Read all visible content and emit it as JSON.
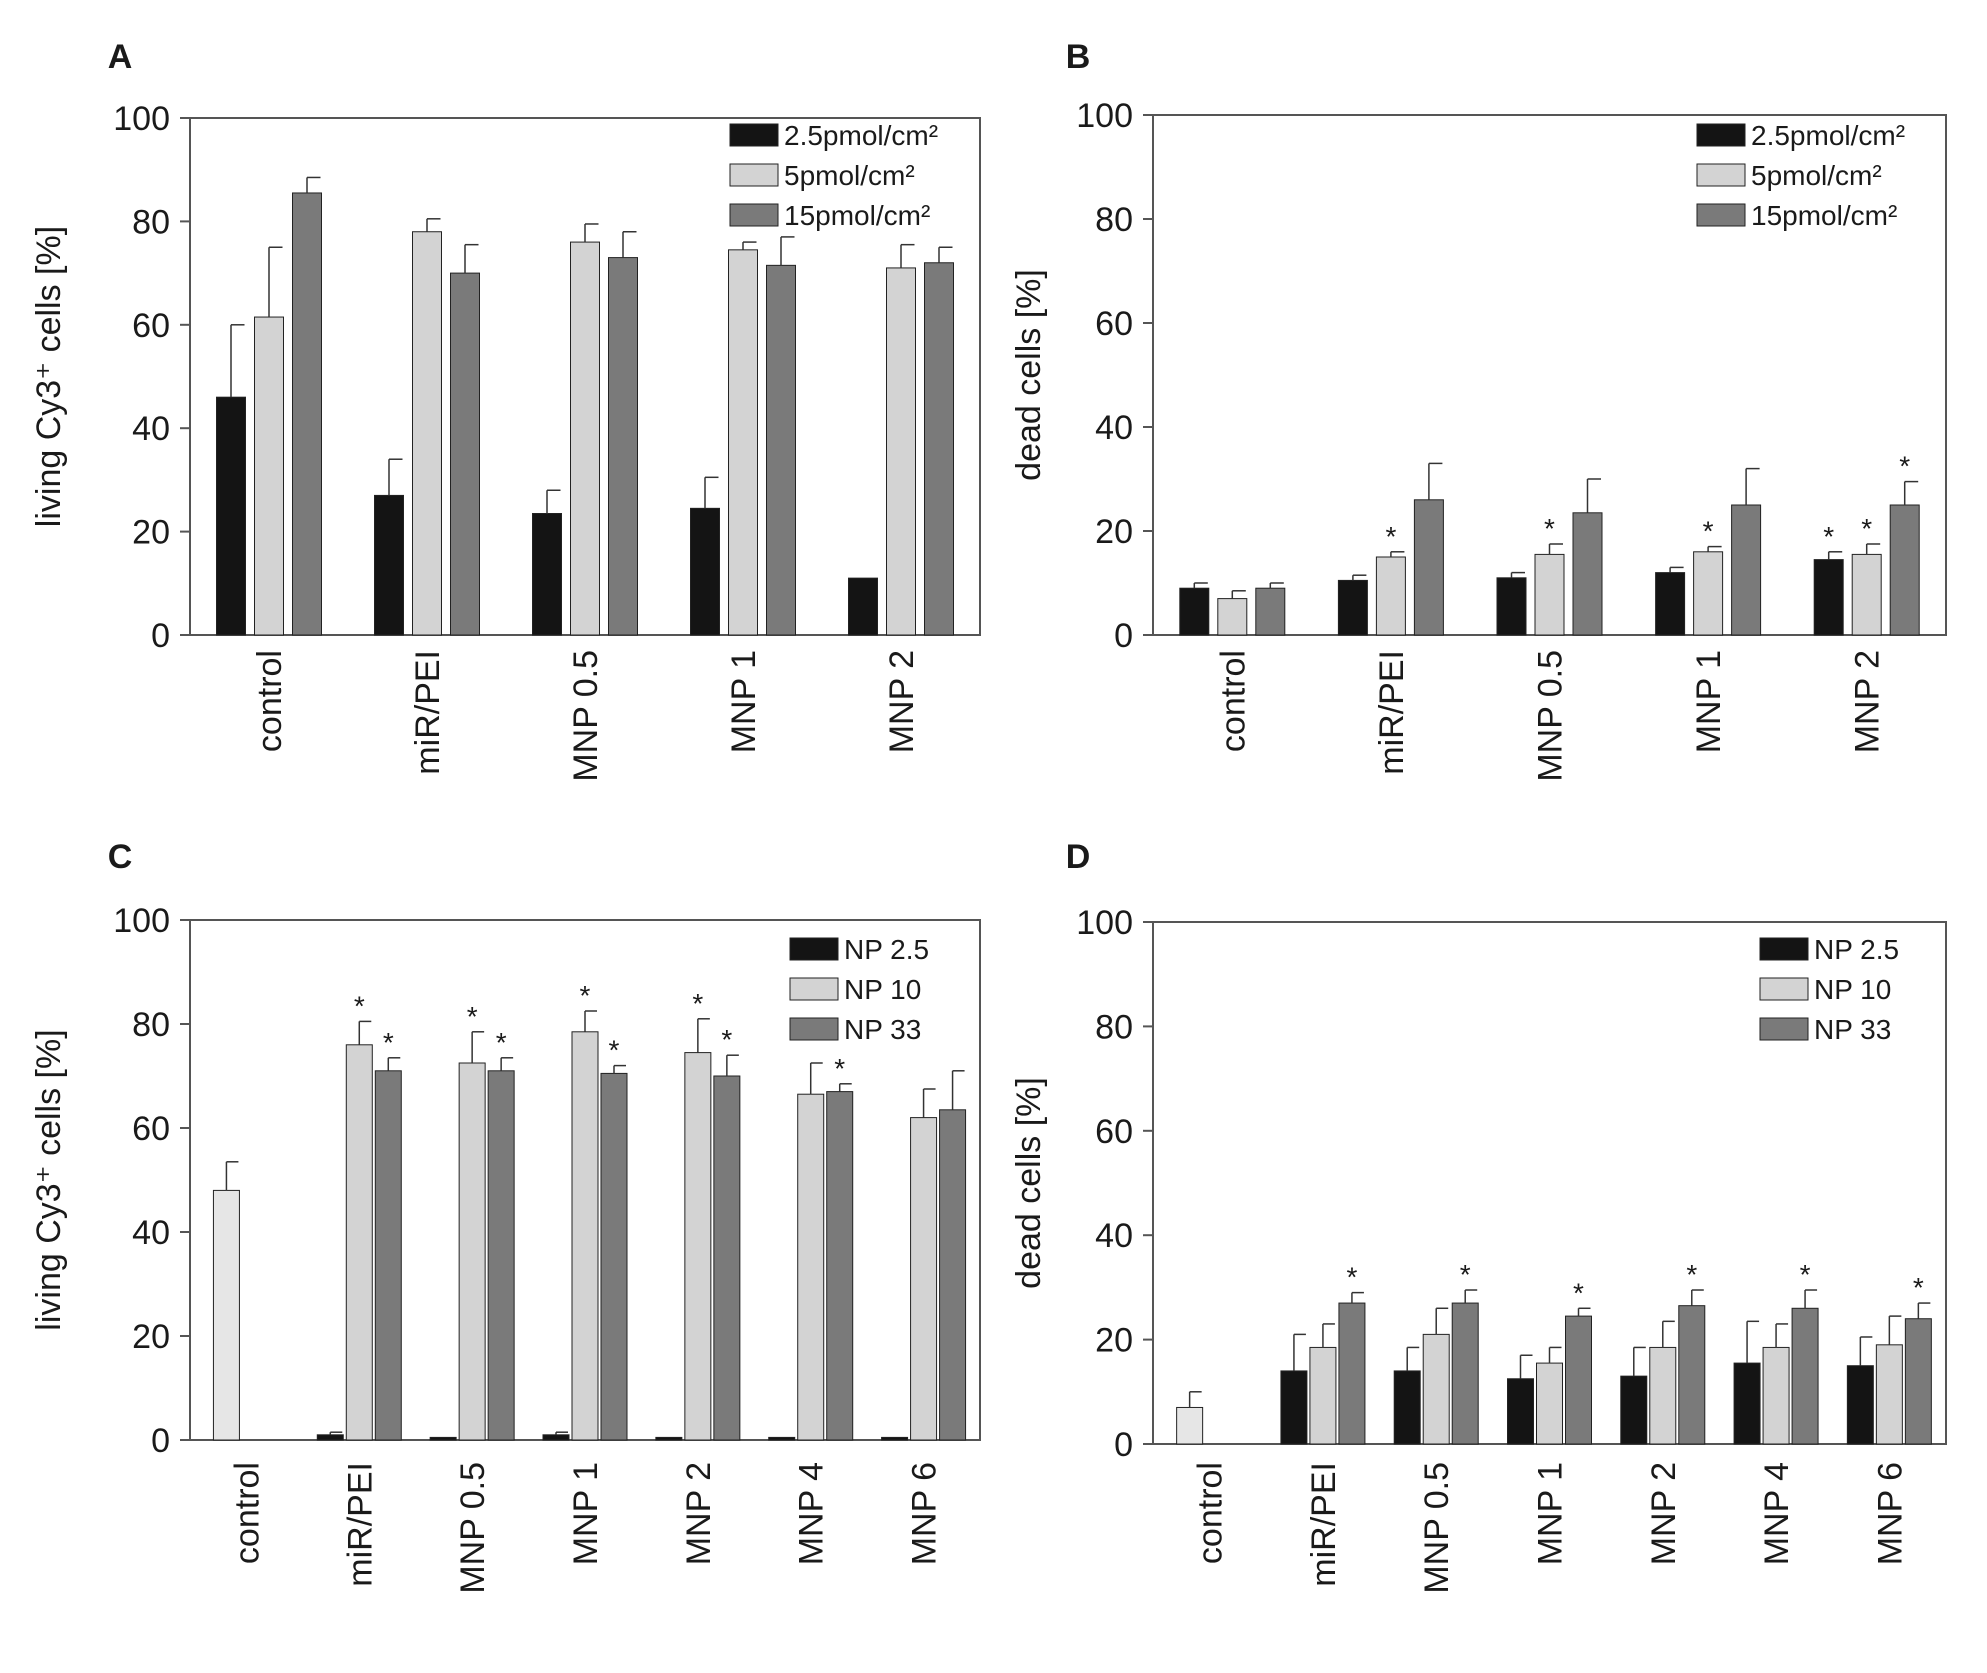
{
  "colors": {
    "series1": "#141414",
    "series2": "#d3d3d3",
    "series3": "#7a7a7a",
    "control_single": "#e6e6e6",
    "axis": "#555555"
  },
  "chart_data": [
    {
      "panel": "A",
      "type": "bar",
      "ylabel": "living Cy3⁺ cells [%]",
      "ylim": [
        0,
        100
      ],
      "yticks": [
        "0",
        "20",
        "40",
        "60",
        "80",
        "100"
      ],
      "categories": [
        "control",
        "miR/PEI",
        "MNP 0.5",
        "MNP 1",
        "MNP 2"
      ],
      "legend_position": "top-right",
      "series": [
        {
          "name": "2.5pmol/cm²",
          "values": [
            46,
            27,
            23.5,
            24.5,
            11
          ],
          "errors": [
            14,
            7,
            4.5,
            6,
            0
          ],
          "stars": [
            false,
            false,
            false,
            false,
            false
          ]
        },
        {
          "name": "5pmol/cm²",
          "values": [
            61.5,
            78,
            76,
            74.5,
            71
          ],
          "errors": [
            13.5,
            2.5,
            3.5,
            1.5,
            4.5
          ],
          "stars": [
            false,
            false,
            false,
            false,
            false
          ]
        },
        {
          "name": "15pmol/cm²",
          "values": [
            85.5,
            70,
            73,
            71.5,
            72
          ],
          "errors": [
            3,
            5.5,
            5,
            5.5,
            3
          ],
          "stars": [
            false,
            false,
            false,
            false,
            false
          ]
        }
      ]
    },
    {
      "panel": "B",
      "type": "bar",
      "ylabel": "dead cells [%]",
      "ylim": [
        0,
        100
      ],
      "yticks": [
        "0",
        "20",
        "40",
        "60",
        "80",
        "100"
      ],
      "categories": [
        "control",
        "miR/PEI",
        "MNP 0.5",
        "MNP 1",
        "MNP 2"
      ],
      "legend_position": "top-right",
      "series": [
        {
          "name": "2.5pmol/cm²",
          "values": [
            9,
            10.5,
            11,
            12,
            14.5
          ],
          "errors": [
            1,
            1,
            1,
            1,
            1.5
          ],
          "stars": [
            false,
            false,
            false,
            false,
            true
          ]
        },
        {
          "name": "5pmol/cm²",
          "values": [
            7,
            15,
            15.5,
            16,
            15.5
          ],
          "errors": [
            1.5,
            1,
            2,
            1,
            2
          ],
          "stars": [
            false,
            true,
            true,
            true,
            true
          ]
        },
        {
          "name": "15pmol/cm²",
          "values": [
            9,
            26,
            23.5,
            25,
            25
          ],
          "errors": [
            1,
            7,
            6.5,
            7,
            4.5
          ],
          "stars": [
            false,
            false,
            false,
            false,
            true
          ]
        }
      ]
    },
    {
      "panel": "C",
      "type": "bar",
      "ylabel": "living Cy3⁺ cells [%]",
      "ylim": [
        0,
        100
      ],
      "yticks": [
        "0",
        "20",
        "40",
        "60",
        "80",
        "100"
      ],
      "categories": [
        "control",
        "miR/PEI",
        "MNP 0.5",
        "MNP 1",
        "MNP 2",
        "MNP 4",
        "MNP 6"
      ],
      "legend_position": "top-right",
      "control_bar": {
        "value": 48,
        "error": 5.5
      },
      "series": [
        {
          "name": "NP 2.5",
          "values": [
            null,
            1,
            0.5,
            1,
            0.5,
            0.5,
            0.5
          ],
          "errors": [
            null,
            0.5,
            0,
            0.5,
            0,
            0,
            0
          ],
          "stars": [
            false,
            false,
            false,
            false,
            false,
            false,
            false
          ]
        },
        {
          "name": "NP 10",
          "values": [
            null,
            76,
            72.5,
            78.5,
            74.5,
            66.5,
            62
          ],
          "errors": [
            null,
            4.5,
            6,
            4,
            6.5,
            6,
            5.5
          ],
          "stars": [
            false,
            true,
            true,
            true,
            true,
            false,
            false
          ]
        },
        {
          "name": "NP 33",
          "values": [
            null,
            71,
            71,
            70.5,
            70,
            67,
            63.5
          ],
          "errors": [
            null,
            2.5,
            2.5,
            1.5,
            4,
            1.5,
            7.5
          ],
          "stars": [
            false,
            true,
            true,
            true,
            true,
            true,
            false
          ]
        }
      ]
    },
    {
      "panel": "D",
      "type": "bar",
      "ylabel": "dead cells [%]",
      "ylim": [
        0,
        100
      ],
      "yticks": [
        "0",
        "20",
        "40",
        "60",
        "80",
        "100"
      ],
      "categories": [
        "control",
        "miR/PEI",
        "MNP 0.5",
        "MNP 1",
        "MNP 2",
        "MNP 4",
        "MNP 6"
      ],
      "legend_position": "top-right",
      "control_bar": {
        "value": 7,
        "error": 3
      },
      "series": [
        {
          "name": "NP 2.5",
          "values": [
            null,
            14,
            14,
            12.5,
            13,
            15.5,
            15
          ],
          "errors": [
            null,
            7,
            4.5,
            4.5,
            5.5,
            8,
            5.5
          ],
          "stars": [
            false,
            false,
            false,
            false,
            false,
            false,
            false
          ]
        },
        {
          "name": "NP 10",
          "values": [
            null,
            18.5,
            21,
            15.5,
            18.5,
            18.5,
            19
          ],
          "errors": [
            null,
            4.5,
            5,
            3,
            5,
            4.5,
            5.5
          ],
          "stars": [
            false,
            false,
            false,
            false,
            false,
            false,
            false
          ]
        },
        {
          "name": "NP 33",
          "values": [
            null,
            27,
            27,
            24.5,
            26.5,
            26,
            24
          ],
          "errors": [
            null,
            2,
            2.5,
            1.5,
            3,
            3.5,
            3
          ],
          "stars": [
            false,
            true,
            true,
            true,
            true,
            true,
            true
          ]
        }
      ]
    }
  ]
}
